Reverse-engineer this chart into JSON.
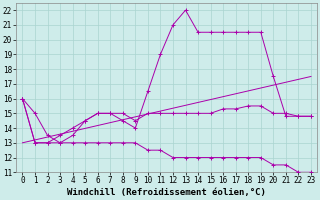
{
  "background_color": "#ceecea",
  "grid_color": "#aad4d0",
  "line_color": "#aa00aa",
  "xlabel": "Windchill (Refroidissement éolien,°C)",
  "xlabel_fontsize": 6.5,
  "tick_fontsize": 5.5,
  "xlim": [
    -0.5,
    23.5
  ],
  "ylim": [
    11,
    22.5
  ],
  "yticks": [
    11,
    12,
    13,
    14,
    15,
    16,
    17,
    18,
    19,
    20,
    21,
    22
  ],
  "xticks": [
    0,
    1,
    2,
    3,
    4,
    5,
    6,
    7,
    8,
    9,
    10,
    11,
    12,
    13,
    14,
    15,
    16,
    17,
    18,
    19,
    20,
    21,
    22,
    23
  ],
  "series": [
    {
      "x": [
        0,
        1,
        2,
        3,
        4,
        5,
        6,
        7,
        8,
        9,
        10,
        11,
        12,
        13,
        14,
        15,
        16,
        17,
        18,
        19,
        20,
        21,
        22,
        23
      ],
      "y": [
        16,
        13,
        13,
        13,
        13,
        13,
        13,
        13,
        13,
        13,
        12.5,
        12.5,
        12,
        12,
        12,
        12,
        12,
        12,
        12,
        12,
        11.5,
        11.5,
        11,
        11
      ],
      "marker": "+"
    },
    {
      "x": [
        0,
        1,
        2,
        3,
        4,
        5,
        6,
        7,
        8,
        9,
        10,
        11,
        12,
        13,
        14,
        15,
        16,
        17,
        18,
        19,
        20,
        21,
        22,
        23
      ],
      "y": [
        16,
        15,
        13.5,
        13,
        13.5,
        14.5,
        15,
        15,
        15,
        14.5,
        15,
        15,
        15,
        15,
        15,
        15,
        15.3,
        15.3,
        15.5,
        15.5,
        15,
        15,
        14.8,
        14.8
      ],
      "marker": "+"
    },
    {
      "x": [
        0,
        1,
        2,
        3,
        4,
        5,
        6,
        7,
        8,
        9,
        10,
        11,
        12,
        13,
        14,
        15,
        16,
        17,
        18,
        19,
        20,
        21,
        22,
        23
      ],
      "y": [
        16,
        13,
        13,
        13.5,
        14,
        14.5,
        15,
        15,
        14.5,
        14,
        16.5,
        19,
        21,
        22,
        20.5,
        20.5,
        20.5,
        20.5,
        20.5,
        20.5,
        17.5,
        14.8,
        14.8,
        14.8
      ],
      "marker": "+"
    },
    {
      "x": [
        0,
        23
      ],
      "y": [
        13,
        17.5
      ],
      "marker": null
    }
  ]
}
